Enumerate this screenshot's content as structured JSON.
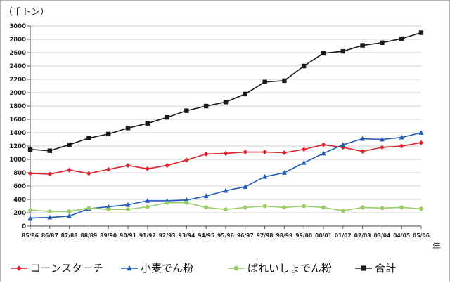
{
  "chart_data": {
    "type": "line",
    "ylabel": "（千トン）",
    "xlabel": "年",
    "ylim": [
      0,
      3000
    ],
    "yticks": [
      0,
      200,
      400,
      600,
      800,
      1000,
      1200,
      1400,
      1600,
      1800,
      2000,
      2200,
      2400,
      2600,
      2800,
      3000
    ],
    "grid": true,
    "legend_placement": "bottom",
    "categories": [
      "85/86",
      "86/87",
      "87/88",
      "88/89",
      "89/90",
      "90/91",
      "91/92",
      "92/93",
      "93/94",
      "94/95",
      "95/96",
      "96/97",
      "97/98",
      "98/99",
      "99/00",
      "00/01",
      "01/02",
      "02/03",
      "03/04",
      "04/05",
      "05/06"
    ],
    "series": [
      {
        "name": "コーンスターチ",
        "color": "#e0202a",
        "marker": "diamond",
        "values": [
          790,
          780,
          840,
          790,
          850,
          910,
          860,
          910,
          990,
          1080,
          1090,
          1110,
          1110,
          1100,
          1150,
          1220,
          1180,
          1120,
          1180,
          1200,
          1250
        ]
      },
      {
        "name": "小麦でん粉",
        "color": "#1e5bb8",
        "marker": "triangle",
        "values": [
          120,
          130,
          150,
          260,
          290,
          320,
          380,
          380,
          390,
          450,
          530,
          590,
          740,
          800,
          950,
          1090,
          1220,
          1310,
          1300,
          1330,
          1400
        ]
      },
      {
        "name": "ばれいしょでん粉",
        "color": "#9acd68",
        "marker": "circle",
        "values": [
          240,
          220,
          220,
          270,
          250,
          250,
          290,
          350,
          350,
          280,
          250,
          280,
          300,
          280,
          300,
          280,
          230,
          280,
          270,
          280,
          260
        ]
      },
      {
        "name": "合計",
        "color": "#1a1a1a",
        "marker": "square",
        "values": [
          1150,
          1130,
          1220,
          1320,
          1380,
          1470,
          1540,
          1630,
          1730,
          1800,
          1860,
          1980,
          2160,
          2180,
          2400,
          2590,
          2620,
          2710,
          2750,
          2810,
          2900
        ]
      }
    ]
  }
}
